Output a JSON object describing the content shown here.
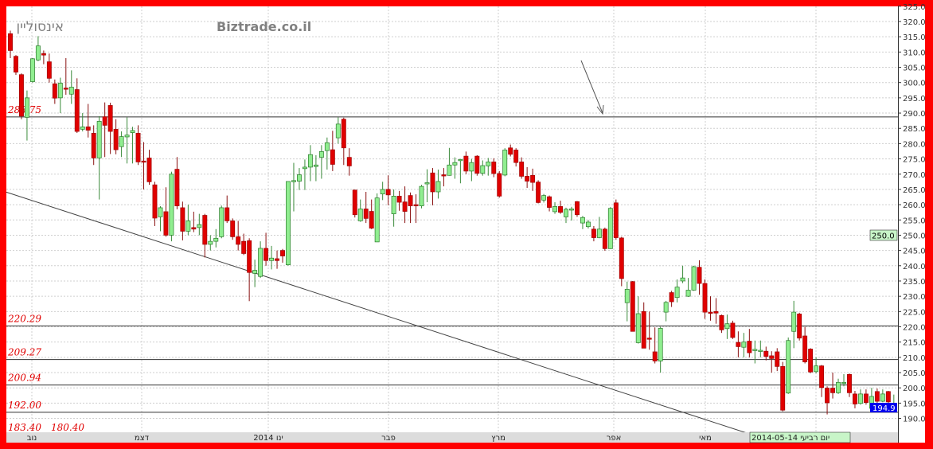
{
  "header": {
    "symbol_label": "אינסוליין",
    "watermark": "Biztrade.co.il"
  },
  "colors": {
    "frame": "#ff0000",
    "bullish": "#90ee90",
    "bearish": "#e00000",
    "level_label": "#e00000",
    "last_price_tag": "#0000ee",
    "cursor_tag": "#c8f5c8"
  },
  "chart_data": {
    "type": "candlestick",
    "title": "",
    "ylim": [
      190,
      325
    ],
    "y_ticks": [
      "325.0",
      "320.0",
      "315.0",
      "310.0",
      "305.0",
      "300.0",
      "295.0",
      "290.0",
      "285.0",
      "280.0",
      "275.0",
      "270.0",
      "265.0",
      "260.0",
      "255.0",
      "250.0",
      "245.0",
      "240.0",
      "235.0",
      "230.0",
      "225.0",
      "220.0",
      "215.0",
      "210.0",
      "205.0",
      "200.0",
      "195.0",
      "190.0"
    ],
    "grid": true,
    "x_ticks": [
      "נוב",
      "דצמ",
      "ינו 2014",
      "פבר",
      "מרץ",
      "אפר",
      "מאי"
    ],
    "levels": [
      {
        "label": "288.75",
        "value": 288.75
      },
      {
        "label": "220.29",
        "value": 220.29
      },
      {
        "label": "209.27",
        "value": 209.27
      },
      {
        "label": "200.94",
        "value": 200.94
      },
      {
        "label": "192.00",
        "value": 192.0
      }
    ],
    "bottom_labels": [
      "183.40",
      "180.40"
    ],
    "trendline": {
      "start_candle": 0,
      "start_value": 264.1,
      "end_candle": 133,
      "end_value": 184.8
    },
    "last_price": "194.9",
    "cursor_price": "250.0",
    "cursor_date": "יום רביעי 2014-05-14",
    "ohlc": [
      [
        316,
        317,
        308,
        310.5
      ],
      [
        308.6,
        309,
        302.5,
        303.4
      ],
      [
        302.6,
        303,
        288,
        289
      ],
      [
        288.6,
        297.4,
        281,
        295
      ],
      [
        300.3,
        308,
        300,
        307.8
      ],
      [
        307.4,
        315.2,
        307,
        312
      ],
      [
        309.5,
        310.5,
        306,
        309
      ],
      [
        306.8,
        309.5,
        300,
        301.4
      ],
      [
        299.6,
        301,
        293,
        294.9
      ],
      [
        295,
        301.6,
        290,
        299.8
      ],
      [
        298.2,
        308,
        296,
        297.8
      ],
      [
        296.2,
        304,
        293,
        298.5
      ],
      [
        297.7,
        301.4,
        283.5,
        284
      ],
      [
        284.7,
        290,
        284,
        285.5
      ],
      [
        285.5,
        293,
        282,
        284.4
      ],
      [
        283.4,
        286,
        273,
        275.3
      ],
      [
        275.3,
        289,
        261.7,
        287.3
      ],
      [
        288.8,
        293.5,
        275.6,
        286
      ],
      [
        292.5,
        293.4,
        276.6,
        284
      ],
      [
        284.7,
        288,
        276.5,
        278
      ],
      [
        279,
        284,
        275.6,
        282.3
      ],
      [
        282.2,
        288.6,
        273.5,
        282.8
      ],
      [
        283.6,
        285.5,
        273.5,
        284.3
      ],
      [
        283.4,
        286,
        273,
        274
      ],
      [
        274.3,
        280.5,
        265,
        274
      ],
      [
        275.3,
        278,
        266.5,
        267.5
      ],
      [
        266.5,
        267.5,
        253,
        255.6
      ],
      [
        256,
        259.5,
        251.3,
        259
      ],
      [
        257.7,
        265.7,
        249.5,
        250
      ],
      [
        250,
        270.8,
        248,
        270
      ],
      [
        271.6,
        275.6,
        258.5,
        259.6
      ],
      [
        259,
        261,
        248.3,
        251.3
      ],
      [
        251.3,
        260,
        250,
        254.7
      ],
      [
        252.5,
        257.7,
        251,
        252
      ],
      [
        252.5,
        257,
        250,
        253.5
      ],
      [
        256.5,
        257,
        242.7,
        247
      ],
      [
        247,
        250,
        245,
        248
      ],
      [
        248,
        252,
        246,
        249
      ],
      [
        249.5,
        259.7,
        249,
        259
      ],
      [
        259,
        263,
        254,
        254.7
      ],
      [
        254.7,
        255.5,
        248.5,
        249.5
      ],
      [
        249.5,
        254.7,
        245,
        247
      ],
      [
        248,
        250.5,
        243.5,
        244
      ],
      [
        248.2,
        249,
        228.4,
        237.8
      ],
      [
        237.5,
        242,
        233,
        238.5
      ],
      [
        236.5,
        248,
        236,
        245.7
      ],
      [
        245.7,
        250.8,
        240,
        241.7
      ],
      [
        241.7,
        246.5,
        238.8,
        242.5
      ],
      [
        242.3,
        245,
        239,
        241.7
      ],
      [
        245,
        245.5,
        241,
        243.2
      ],
      [
        240.3,
        267.6,
        240,
        267.6
      ],
      [
        267.7,
        273.7,
        257.8,
        267.9
      ],
      [
        267.7,
        272,
        264.8,
        269.8
      ],
      [
        271.8,
        274.8,
        264.8,
        272.3
      ],
      [
        272.3,
        279.5,
        267.7,
        276.4
      ],
      [
        272.5,
        276.2,
        267.7,
        273
      ],
      [
        275.5,
        279.5,
        268.5,
        277.4
      ],
      [
        277.7,
        282,
        271.5,
        280.3
      ],
      [
        278,
        284.2,
        271,
        273.2
      ],
      [
        281.9,
        288.6,
        280,
        286.4
      ],
      [
        288,
        288.5,
        273,
        278.6
      ],
      [
        275.5,
        278.5,
        269.5,
        272.7
      ],
      [
        264.8,
        264.8,
        255.8,
        256.7
      ],
      [
        254.7,
        261.7,
        254.4,
        258.6
      ],
      [
        258.6,
        264.2,
        254,
        255.5
      ],
      [
        257.8,
        261.7,
        252,
        252.3
      ],
      [
        247.8,
        263.7,
        247.8,
        262.2
      ],
      [
        263.5,
        267.5,
        261.5,
        265
      ],
      [
        265,
        269.6,
        259.8,
        263.2
      ],
      [
        257,
        265,
        252.8,
        262.8
      ],
      [
        262.8,
        264.5,
        258,
        260.8
      ],
      [
        260.9,
        266,
        254,
        257.8
      ],
      [
        263,
        264,
        254,
        259.6
      ],
      [
        260,
        263.4,
        254,
        259.8
      ],
      [
        259.6,
        266.5,
        258.8,
        266
      ],
      [
        266.8,
        271.6,
        260.8,
        267.2
      ],
      [
        270.4,
        272,
        259.8,
        264.2
      ],
      [
        264.2,
        271.5,
        262,
        267.6
      ],
      [
        269.8,
        272,
        266,
        269.4
      ],
      [
        269.6,
        278.6,
        269.5,
        273
      ],
      [
        273,
        275.5,
        268.5,
        273.8
      ],
      [
        274.5,
        275,
        267,
        274.8
      ],
      [
        275.9,
        277.4,
        270,
        271
      ],
      [
        271,
        275,
        267.7,
        273.8
      ],
      [
        275.9,
        276.2,
        269.5,
        270.3
      ],
      [
        270.3,
        274.5,
        269.5,
        272.8
      ],
      [
        272.7,
        275.3,
        269.5,
        274
      ],
      [
        274,
        275.2,
        269,
        270.2
      ],
      [
        270.2,
        271,
        262.3,
        262.8
      ],
      [
        269.7,
        278.5,
        269.3,
        277.9
      ],
      [
        278.6,
        279.7,
        275.8,
        276.5
      ],
      [
        277.9,
        278.5,
        272.5,
        273.8
      ],
      [
        274,
        275.5,
        268.5,
        269.3
      ],
      [
        269.3,
        272.3,
        265.5,
        267.7
      ],
      [
        269.6,
        271.8,
        264.5,
        267.3
      ],
      [
        267.4,
        268,
        260.4,
        260.7
      ],
      [
        261.5,
        263.5,
        260.7,
        263
      ],
      [
        262.6,
        263,
        257.8,
        259.1
      ],
      [
        257.7,
        260.8,
        257,
        259.4
      ],
      [
        259.4,
        261.3,
        257,
        257.5
      ],
      [
        256,
        259,
        254,
        258.5
      ],
      [
        258.4,
        259.3,
        254.8,
        258.6
      ],
      [
        261,
        261.2,
        256,
        256.7
      ],
      [
        254,
        256.3,
        252,
        255.8
      ],
      [
        252.8,
        255,
        252.2,
        254.3
      ],
      [
        252,
        253,
        248,
        249.2
      ],
      [
        249.2,
        256,
        249,
        252
      ],
      [
        252,
        252.5,
        244.9,
        245.6
      ],
      [
        245.6,
        259.2,
        245.5,
        258.8
      ],
      [
        260.6,
        261.7,
        248.5,
        249.2
      ],
      [
        249.1,
        249.5,
        233.3,
        235.8
      ],
      [
        227.9,
        234.8,
        221.8,
        232.3
      ],
      [
        234.8,
        235,
        218.5,
        218.5
      ],
      [
        214.8,
        230,
        214.5,
        224.3
      ],
      [
        225,
        228,
        213,
        213
      ],
      [
        216.3,
        225,
        212.5,
        216
      ],
      [
        211.8,
        219.8,
        208,
        208.8
      ],
      [
        208.8,
        220,
        205,
        219.5
      ],
      [
        224.8,
        228.5,
        221.8,
        228
      ],
      [
        231.2,
        231.8,
        226.5,
        228.2
      ],
      [
        229.6,
        235.5,
        228,
        233
      ],
      [
        235,
        240,
        234.3,
        236
      ],
      [
        230,
        236,
        229.8,
        232
      ],
      [
        232,
        240,
        231.8,
        239.7
      ],
      [
        239.5,
        241.8,
        230.5,
        234.2
      ],
      [
        234.2,
        235.5,
        222.6,
        224.8
      ],
      [
        224.8,
        230,
        222,
        224.6
      ],
      [
        225,
        229.4,
        221,
        224.5
      ],
      [
        223.7,
        224,
        218,
        219
      ],
      [
        219.4,
        224,
        216,
        221
      ],
      [
        221.2,
        222,
        216,
        216.5
      ],
      [
        214.9,
        218.5,
        210,
        213.5
      ],
      [
        213.3,
        218,
        210,
        215
      ],
      [
        215.3,
        219.3,
        210,
        211.5
      ],
      [
        212.2,
        215.5,
        208,
        212.6
      ],
      [
        212.2,
        215.5,
        210,
        212.3
      ],
      [
        212,
        213.5,
        209,
        210.3
      ],
      [
        210.5,
        212,
        205,
        209.6
      ],
      [
        211.8,
        213,
        205.5,
        207
      ],
      [
        207,
        208.5,
        192.3,
        192.7
      ],
      [
        198.3,
        216.5,
        198,
        215.5
      ],
      [
        218.5,
        228.5,
        213,
        224.8
      ],
      [
        224.2,
        224.6,
        215.5,
        216.3
      ],
      [
        217,
        220,
        208,
        208.5
      ],
      [
        212.7,
        213,
        204.8,
        205.2
      ],
      [
        205.3,
        210,
        204.8,
        207.2
      ],
      [
        207.2,
        207.5,
        197,
        200.1
      ],
      [
        199.9,
        200.5,
        191.3,
        195.1
      ],
      [
        199.9,
        205,
        196.5,
        198.4
      ],
      [
        198.4,
        203,
        198,
        201.8
      ],
      [
        201.5,
        204.5,
        200.5,
        201.8
      ],
      [
        204.4,
        204.7,
        197,
        198.4
      ],
      [
        198,
        199,
        193.3,
        194.7
      ],
      [
        194.9,
        199.5,
        194.5,
        198
      ],
      [
        198,
        199.5,
        194.5,
        195.2
      ],
      [
        193.3,
        200,
        193,
        197.2
      ],
      [
        198.8,
        199.8,
        195,
        195.6
      ],
      [
        195.6,
        199.5,
        195.3,
        198
      ],
      [
        198.8,
        199,
        194.5,
        195.4
      ],
      [
        193.2,
        197.8,
        192,
        194.9
      ]
    ]
  }
}
